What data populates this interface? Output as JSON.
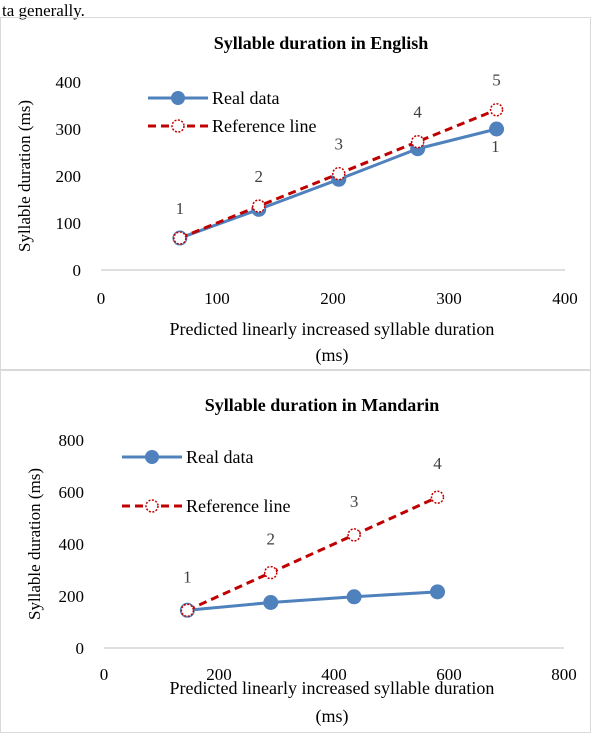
{
  "page_text": "ta generally.",
  "chart_data": [
    {
      "type": "line",
      "title": "Syllable duration in English",
      "xlabel": "Predicted linearly increased syllable duration (ms)",
      "ylabel": "Syllable duration (ms)",
      "xlim": [
        0,
        400
      ],
      "ylim": [
        0,
        400
      ],
      "x_ticks": [
        "0",
        "100",
        "200",
        "300",
        "400"
      ],
      "y_ticks": [
        "0",
        "100",
        "200",
        "300",
        "400"
      ],
      "grid": false,
      "legend_position": "top-left",
      "series": [
        {
          "name": "Real data",
          "color": "#4f81bd",
          "style": "solid-filled-circle",
          "x": [
            68,
            136,
            205,
            273,
            341
          ],
          "y": [
            68,
            129,
            193,
            258,
            300
          ]
        },
        {
          "name": "Reference line",
          "color": "#c00000",
          "style": "dashed-open-circle",
          "x": [
            68,
            136,
            205,
            273,
            341
          ],
          "y": [
            68,
            136,
            205,
            273,
            341
          ]
        }
      ],
      "point_labels": [
        "1",
        "2",
        "3",
        "4",
        "5"
      ],
      "extra_labels": [
        {
          "text": "1",
          "x": 300,
          "y": 300
        }
      ]
    },
    {
      "type": "line",
      "title": "Syllable duration in Mandarin",
      "xlabel": "Predicted linearly increased syllable duration (ms)",
      "ylabel": "Syllable duration (ms)",
      "xlim": [
        0,
        800
      ],
      "ylim": [
        0,
        800
      ],
      "x_ticks": [
        "0",
        "200",
        "400",
        "600",
        "800"
      ],
      "y_ticks": [
        "0",
        "200",
        "400",
        "600",
        "800"
      ],
      "grid": false,
      "legend_position": "top-left",
      "series": [
        {
          "name": "Real data",
          "color": "#4f81bd",
          "style": "solid-filled-circle",
          "x": [
            145,
            290,
            435,
            580
          ],
          "y": [
            145,
            175,
            197,
            216
          ]
        },
        {
          "name": "Reference line",
          "color": "#c00000",
          "style": "dashed-open-circle",
          "x": [
            145,
            290,
            435,
            580
          ],
          "y": [
            145,
            290,
            435,
            580
          ]
        }
      ],
      "point_labels": [
        "1",
        "2",
        "3",
        "4"
      ],
      "extra_labels": []
    }
  ]
}
